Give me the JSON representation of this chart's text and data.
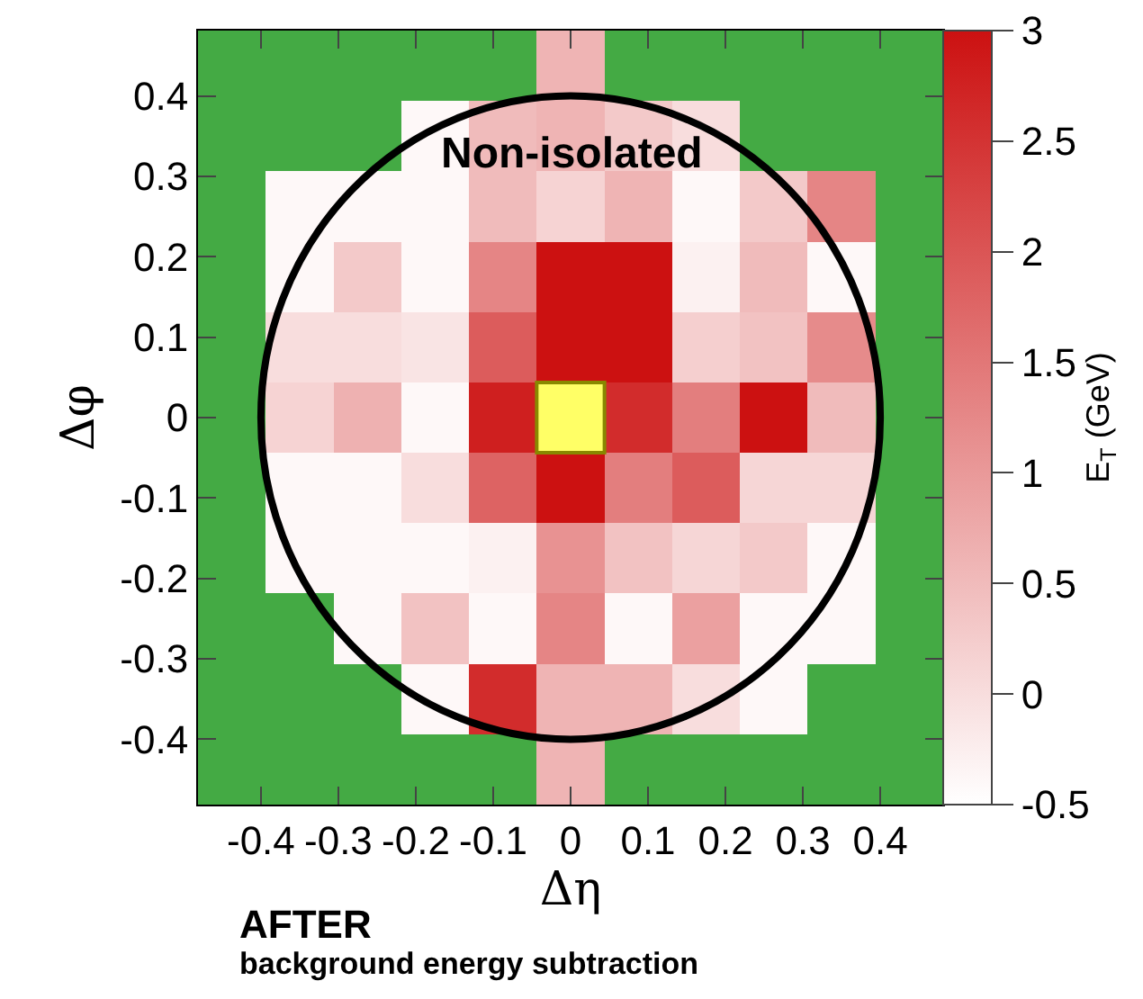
{
  "chart_data": {
    "type": "heatmap",
    "xlabel": "Δη",
    "ylabel": "Δφ",
    "clabel": "E$_{T}$ (GeV)",
    "annotations": [
      "Non-isolated",
      "AFTER",
      "background energy subtraction"
    ],
    "x": [
      -0.4375,
      -0.35,
      -0.2625,
      -0.175,
      -0.0875,
      0,
      0.0875,
      0.175,
      0.2625,
      0.35,
      0.4375
    ],
    "xlim": [
      -0.48125,
      0.48125
    ],
    "ylim": [
      -0.48125,
      0.48125
    ],
    "xticks": [
      -0.4,
      -0.3,
      -0.2,
      -0.1,
      0,
      0.1,
      0.2,
      0.3,
      0.4
    ],
    "yticks": [
      -0.4,
      -0.3,
      -0.2,
      -0.1,
      0,
      0.1,
      0.2,
      0.3,
      0.4
    ],
    "color": "#cc1111",
    "clim": [
      -0.5,
      3
    ],
    "cticks": [
      -0.5,
      0,
      0.5,
      1,
      1.5,
      2,
      2.5,
      3
    ],
    "cells": [
      [
        null,
        null,
        null,
        null,
        null,
        0.6,
        null,
        null,
        null,
        null,
        null
      ],
      [
        null,
        null,
        null,
        -0.4,
        0.5,
        0.6,
        0.3,
        0.0,
        null,
        null,
        null
      ],
      [
        null,
        -0.4,
        -0.4,
        -0.4,
        0.5,
        0.15,
        0.6,
        -0.4,
        0.3,
        1.3,
        null
      ],
      [
        null,
        -0.4,
        0.3,
        -0.4,
        1.3,
        3,
        3,
        -0.3,
        0.5,
        -0.4,
        null
      ],
      [
        null,
        0.0,
        0.0,
        -0.1,
        1.9,
        3,
        3,
        0.2,
        0.4,
        1.2,
        null
      ],
      [
        null,
        0.15,
        0.65,
        -0.4,
        2.8,
        null,
        2.6,
        1.4,
        3,
        0.5,
        null
      ],
      [
        null,
        -0.4,
        -0.4,
        0.0,
        1.8,
        3,
        1.4,
        1.9,
        0.1,
        0.1,
        null
      ],
      [
        null,
        -0.4,
        -0.4,
        -0.4,
        -0.3,
        1.1,
        0.4,
        0.1,
        0.3,
        -0.4,
        null
      ],
      [
        null,
        null,
        -0.4,
        0.4,
        -0.4,
        1.3,
        -0.4,
        0.9,
        -0.4,
        -0.4,
        null
      ],
      [
        null,
        null,
        null,
        -0.4,
        2.6,
        0.6,
        0.6,
        0.0,
        -0.4,
        null,
        null
      ],
      [
        null,
        null,
        null,
        null,
        null,
        0.6,
        null,
        null,
        null,
        null,
        null
      ]
    ]
  }
}
